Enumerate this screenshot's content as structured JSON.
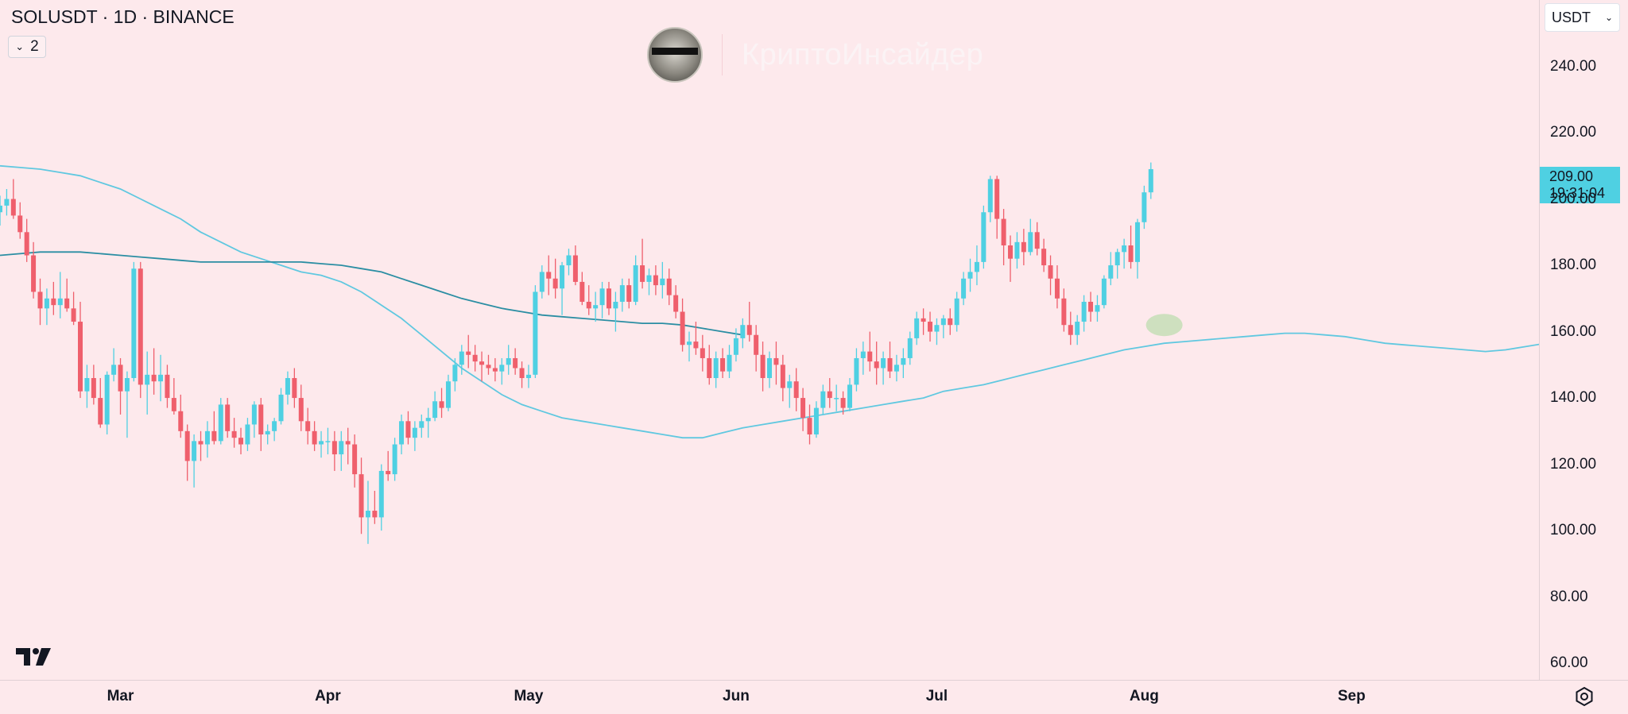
{
  "header": {
    "symbol_title": "SOLUSDT · 1D · BINANCE",
    "indicator_count": "2",
    "currency": "USDT"
  },
  "watermark": {
    "brand": "КриптоИнсайдер"
  },
  "last_price": {
    "price": "209.00",
    "countdown": "19:31:04"
  },
  "icons": [
    "chevron-down-icon",
    "tradingview-logo-icon",
    "settings-icon",
    "avatar-icon"
  ],
  "colors": {
    "up": "#4fd0e2",
    "down": "#ef5f6c",
    "ma_fast": "#60c8e0",
    "ma_slow": "#2b8ea3",
    "background": "#fde9ec",
    "highlight": "#a8d89a"
  },
  "chart_data": {
    "type": "candlestick",
    "symbol": "SOLUSDT",
    "interval": "1D",
    "exchange": "BINANCE",
    "ylim": [
      55,
      260
    ],
    "y_ticks": [
      "240.00",
      "220.00",
      "200.00",
      "180.00",
      "160.00",
      "140.00",
      "120.00",
      "100.00",
      "80.00",
      "60.00"
    ],
    "x_ticks": [
      "Mar",
      "Apr",
      "May",
      "Jun",
      "Jul",
      "Aug",
      "Sep"
    ],
    "xlim": [
      "2024-02-12",
      "2024-09-29"
    ],
    "candles_start": "2024-02-12",
    "candles": [
      [
        196,
        201,
        192,
        198
      ],
      [
        198,
        203,
        195,
        200
      ],
      [
        200,
        206,
        194,
        195
      ],
      [
        195,
        199,
        188,
        190
      ],
      [
        190,
        194,
        181,
        183
      ],
      [
        183,
        187,
        170,
        172
      ],
      [
        172,
        176,
        162,
        167
      ],
      [
        167,
        173,
        162,
        170
      ],
      [
        170,
        175,
        165,
        168
      ],
      [
        168,
        178,
        164,
        170
      ],
      [
        170,
        176,
        166,
        167
      ],
      [
        167,
        172,
        162,
        163
      ],
      [
        163,
        169,
        140,
        142
      ],
      [
        142,
        150,
        137,
        146
      ],
      [
        146,
        150,
        138,
        140
      ],
      [
        140,
        146,
        131,
        132
      ],
      [
        132,
        148,
        129,
        147
      ],
      [
        147,
        155,
        145,
        150
      ],
      [
        150,
        152,
        135,
        142
      ],
      [
        142,
        148,
        128,
        146
      ],
      [
        146,
        181,
        145,
        179
      ],
      [
        179,
        181,
        140,
        144
      ],
      [
        144,
        154,
        135,
        147
      ],
      [
        147,
        155,
        141,
        145
      ],
      [
        145,
        153,
        139,
        147
      ],
      [
        147,
        150,
        137,
        140
      ],
      [
        140,
        146,
        135,
        136
      ],
      [
        136,
        141,
        128,
        130
      ],
      [
        130,
        132,
        115,
        121
      ],
      [
        121,
        129,
        113,
        127
      ],
      [
        127,
        130,
        121,
        126
      ],
      [
        126,
        133,
        122,
        130
      ],
      [
        130,
        136,
        126,
        127
      ],
      [
        127,
        140,
        126,
        138
      ],
      [
        138,
        140,
        128,
        130
      ],
      [
        130,
        134,
        125,
        128
      ],
      [
        128,
        131,
        123,
        126
      ],
      [
        126,
        134,
        124,
        132
      ],
      [
        132,
        139,
        128,
        138
      ],
      [
        138,
        140,
        124,
        129
      ],
      [
        129,
        132,
        126,
        130
      ],
      [
        130,
        134,
        127,
        133
      ],
      [
        133,
        143,
        132,
        141
      ],
      [
        141,
        148,
        138,
        146
      ],
      [
        146,
        149,
        137,
        140
      ],
      [
        140,
        144,
        130,
        133
      ],
      [
        133,
        137,
        126,
        130
      ],
      [
        130,
        133,
        124,
        126
      ],
      [
        126,
        130,
        122,
        127
      ],
      [
        127,
        131,
        123,
        127
      ],
      [
        127,
        130,
        118,
        123
      ],
      [
        123,
        130,
        118,
        127
      ],
      [
        127,
        131,
        120,
        126
      ],
      [
        126,
        129,
        113,
        117
      ],
      [
        117,
        122,
        99,
        104
      ],
      [
        104,
        115,
        96,
        106
      ],
      [
        106,
        112,
        102,
        104
      ],
      [
        104,
        120,
        100,
        118
      ],
      [
        118,
        124,
        115,
        117
      ],
      [
        117,
        128,
        115,
        126
      ],
      [
        126,
        135,
        123,
        133
      ],
      [
        133,
        136,
        126,
        128
      ],
      [
        128,
        133,
        124,
        131
      ],
      [
        131,
        135,
        128,
        133
      ],
      [
        133,
        137,
        128,
        134
      ],
      [
        134,
        142,
        133,
        139
      ],
      [
        139,
        143,
        134,
        137
      ],
      [
        137,
        147,
        136,
        145
      ],
      [
        145,
        152,
        142,
        150
      ],
      [
        150,
        156,
        147,
        154
      ],
      [
        154,
        159,
        149,
        153
      ],
      [
        153,
        156,
        148,
        151
      ],
      [
        151,
        154,
        145,
        150
      ],
      [
        150,
        153,
        147,
        149
      ],
      [
        149,
        152,
        145,
        148
      ],
      [
        148,
        152,
        144,
        150
      ],
      [
        150,
        156,
        147,
        152
      ],
      [
        152,
        155,
        147,
        149
      ],
      [
        149,
        151,
        143,
        146
      ],
      [
        146,
        150,
        143,
        147
      ],
      [
        147,
        174,
        146,
        172
      ],
      [
        172,
        180,
        170,
        178
      ],
      [
        178,
        183,
        171,
        176
      ],
      [
        176,
        182,
        170,
        173
      ],
      [
        173,
        181,
        165,
        180
      ],
      [
        180,
        185,
        177,
        183
      ],
      [
        183,
        186,
        174,
        175
      ],
      [
        175,
        178,
        168,
        169
      ],
      [
        169,
        174,
        165,
        167
      ],
      [
        167,
        172,
        163,
        168
      ],
      [
        168,
        175,
        164,
        173
      ],
      [
        173,
        175,
        165,
        167
      ],
      [
        167,
        172,
        160,
        169
      ],
      [
        169,
        176,
        166,
        174
      ],
      [
        174,
        176,
        167,
        169
      ],
      [
        169,
        183,
        168,
        180
      ],
      [
        180,
        188,
        173,
        175
      ],
      [
        175,
        179,
        171,
        177
      ],
      [
        177,
        180,
        171,
        174
      ],
      [
        174,
        181,
        170,
        176
      ],
      [
        176,
        179,
        168,
        171
      ],
      [
        171,
        174,
        164,
        166
      ],
      [
        166,
        170,
        154,
        156
      ],
      [
        156,
        160,
        151,
        157
      ],
      [
        157,
        163,
        153,
        155
      ],
      [
        155,
        159,
        148,
        152
      ],
      [
        152,
        156,
        144,
        146
      ],
      [
        146,
        154,
        143,
        152
      ],
      [
        152,
        155,
        146,
        148
      ],
      [
        148,
        156,
        146,
        153
      ],
      [
        153,
        161,
        151,
        158
      ],
      [
        158,
        164,
        155,
        162
      ],
      [
        162,
        169,
        157,
        159
      ],
      [
        159,
        162,
        148,
        153
      ],
      [
        153,
        157,
        142,
        146
      ],
      [
        146,
        154,
        143,
        152
      ],
      [
        152,
        157,
        144,
        150
      ],
      [
        150,
        153,
        139,
        143
      ],
      [
        143,
        147,
        137,
        145
      ],
      [
        145,
        149,
        136,
        140
      ],
      [
        140,
        143,
        130,
        134
      ],
      [
        134,
        138,
        126,
        129
      ],
      [
        129,
        139,
        128,
        137
      ],
      [
        137,
        144,
        135,
        142
      ],
      [
        142,
        146,
        137,
        140
      ],
      [
        140,
        144,
        136,
        140
      ],
      [
        140,
        142,
        135,
        137
      ],
      [
        137,
        146,
        136,
        144
      ],
      [
        144,
        155,
        142,
        152
      ],
      [
        152,
        157,
        147,
        154
      ],
      [
        154,
        160,
        148,
        151
      ],
      [
        151,
        157,
        144,
        149
      ],
      [
        149,
        154,
        144,
        152
      ],
      [
        152,
        157,
        146,
        148
      ],
      [
        148,
        153,
        145,
        150
      ],
      [
        150,
        155,
        146,
        152
      ],
      [
        152,
        160,
        150,
        158
      ],
      [
        158,
        166,
        156,
        164
      ],
      [
        164,
        167,
        159,
        163
      ],
      [
        163,
        166,
        157,
        160
      ],
      [
        160,
        164,
        156,
        162
      ],
      [
        162,
        165,
        158,
        164
      ],
      [
        164,
        167,
        159,
        162
      ],
      [
        162,
        172,
        160,
        170
      ],
      [
        170,
        178,
        168,
        176
      ],
      [
        176,
        182,
        172,
        178
      ],
      [
        178,
        186,
        174,
        181
      ],
      [
        181,
        198,
        179,
        196
      ],
      [
        196,
        207,
        193,
        206
      ],
      [
        206,
        207,
        188,
        194
      ],
      [
        194,
        197,
        180,
        186
      ],
      [
        186,
        189,
        175,
        182
      ],
      [
        182,
        190,
        179,
        187
      ],
      [
        187,
        191,
        180,
        184
      ],
      [
        184,
        194,
        183,
        190
      ],
      [
        190,
        193,
        183,
        185
      ],
      [
        185,
        188,
        178,
        180
      ],
      [
        180,
        183,
        171,
        176
      ],
      [
        176,
        180,
        167,
        170
      ],
      [
        170,
        173,
        160,
        162
      ],
      [
        162,
        166,
        156,
        159
      ],
      [
        159,
        165,
        156,
        163
      ],
      [
        163,
        171,
        160,
        169
      ],
      [
        169,
        172,
        163,
        166
      ],
      [
        166,
        171,
        163,
        168
      ],
      [
        168,
        177,
        167,
        176
      ],
      [
        176,
        184,
        174,
        180
      ],
      [
        180,
        185,
        176,
        184
      ],
      [
        184,
        188,
        179,
        186
      ],
      [
        186,
        192,
        179,
        181
      ],
      [
        181,
        194,
        176,
        193
      ],
      [
        193,
        204,
        191,
        202
      ],
      [
        202,
        211,
        200,
        209
      ]
    ],
    "moving_averages": [
      {
        "name": "fast",
        "start": "2024-02-12",
        "values": [
          210,
          209.5,
          209,
          208,
          207,
          205,
          203,
          200,
          197,
          194,
          190,
          187,
          184,
          182,
          180,
          178,
          177,
          175,
          172,
          168,
          164,
          159,
          154,
          149,
          145,
          141,
          138,
          136,
          134,
          133,
          132,
          131,
          130,
          129,
          128,
          128,
          129.5,
          131,
          132,
          133,
          134,
          135,
          136,
          137,
          138,
          139,
          140,
          142,
          143,
          144,
          145.5,
          147,
          148.5,
          150,
          151.5,
          153,
          154.5,
          155.5,
          156.5,
          157,
          157.5,
          158,
          158.5,
          159,
          159.5,
          159.5,
          159,
          158.5,
          157.5,
          156.5,
          156,
          155.5,
          155,
          154.5,
          154,
          154.5,
          155.5,
          156.5,
          157.5,
          158,
          158.5,
          159,
          160,
          161,
          162,
          163.5,
          165,
          167,
          169.5
        ]
      },
      {
        "name": "slow",
        "start": "2024-02-12",
        "values": [
          183,
          183.5,
          184,
          184,
          184,
          183.5,
          183,
          182.5,
          182,
          181.5,
          181,
          181,
          181,
          181,
          181,
          181,
          180.5,
          180,
          179,
          178,
          176,
          174,
          172,
          170,
          168.5,
          167,
          166,
          165,
          164.5,
          164,
          163.5,
          163,
          162.5,
          162.5,
          162,
          161,
          160,
          159
        ]
      }
    ],
    "annotation": {
      "type": "ellipse",
      "date": "2024-08-04",
      "price": 162,
      "label": ""
    }
  }
}
